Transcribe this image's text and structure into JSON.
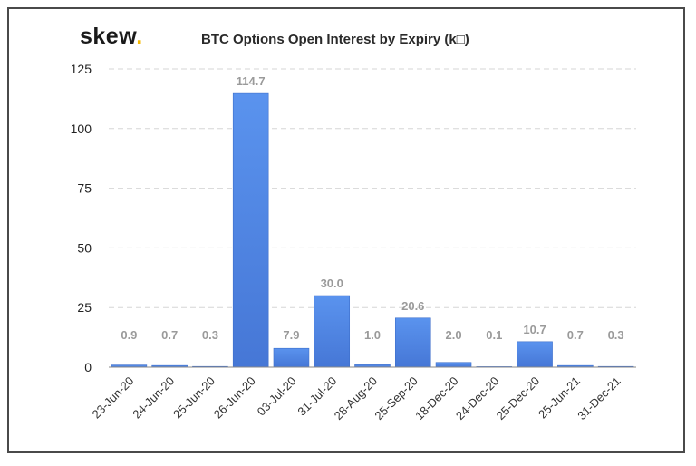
{
  "brand": {
    "name": "skew",
    "dot": "."
  },
  "chart_data": {
    "type": "bar",
    "title": "BTC Options Open Interest by Expiry (k□)",
    "xlabel": "",
    "ylabel": "",
    "categories": [
      "23-Jun-20",
      "24-Jun-20",
      "25-Jun-20",
      "26-Jun-20",
      "03-Jul-20",
      "31-Jul-20",
      "28-Aug-20",
      "25-Sep-20",
      "18-Dec-20",
      "24-Dec-20",
      "25-Dec-20",
      "25-Jun-21",
      "31-Dec-21"
    ],
    "values": [
      0.9,
      0.7,
      0.3,
      114.7,
      7.9,
      30.0,
      1.0,
      20.6,
      2.0,
      0.1,
      10.7,
      0.7,
      0.3
    ],
    "data_labels": [
      "0.9",
      "0.7",
      "0.3",
      "114.7",
      "7.9",
      "30.0",
      "1.0",
      "20.6",
      "2.0",
      "0.1",
      "10.7",
      "0.7",
      "0.3"
    ],
    "ylim": [
      0,
      125
    ],
    "yticks": [
      0,
      25,
      50,
      75,
      100,
      125
    ],
    "grid": true,
    "bar_color": "#4e86e4"
  }
}
